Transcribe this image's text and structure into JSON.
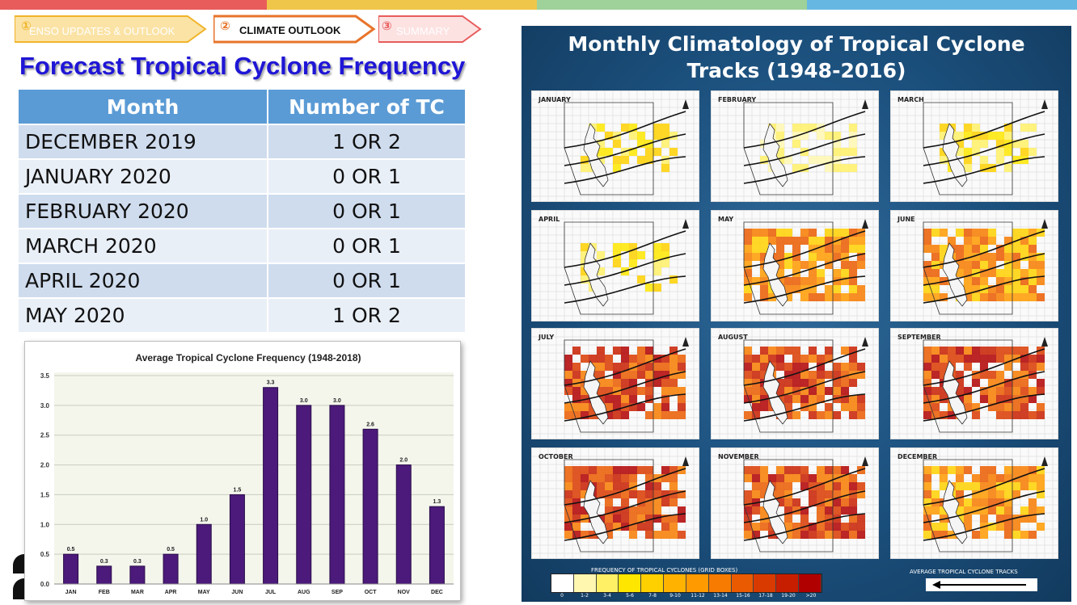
{
  "colors": {
    "strip": [
      "#e85c5c",
      "#f0c64a",
      "#9ed29a",
      "#66b8e3"
    ],
    "title_blue": "#1f16d6",
    "table_header": "#5b9bd5",
    "bar_purple": "#4b1a7a"
  },
  "breadcrumb": [
    {
      "num": "①",
      "label": "ENSO UPDATES & OUTLOOK"
    },
    {
      "num": "②",
      "label": "CLIMATE OUTLOOK"
    },
    {
      "num": "③",
      "label": "SUMMARY"
    }
  ],
  "page_title": "Forecast Tropical Cyclone Frequency",
  "table": {
    "headers": [
      "Month",
      "Number of TC"
    ],
    "rows": [
      {
        "month": "DECEMBER 2019",
        "value": "1 OR 2"
      },
      {
        "month": "JANUARY 2020",
        "value": "0 OR 1"
      },
      {
        "month": "FEBRUARY 2020",
        "value": "0 OR 1"
      },
      {
        "month": "MARCH 2020",
        "value": "0 OR 1"
      },
      {
        "month": "APRIL 2020",
        "value": "0 OR 1"
      },
      {
        "month": "MAY 2020",
        "value": "1 OR 2"
      }
    ]
  },
  "chart_data": {
    "type": "bar",
    "title": "Average Tropical Cyclone Frequency (1948-2018)",
    "categories": [
      "JAN",
      "FEB",
      "MAR",
      "APR",
      "MAY",
      "JUN",
      "JUL",
      "AUG",
      "SEP",
      "OCT",
      "NOV",
      "DEC"
    ],
    "values": [
      0.5,
      0.3,
      0.3,
      0.5,
      1.0,
      1.5,
      3.3,
      3.0,
      3.0,
      2.6,
      2.0,
      1.3
    ],
    "value_labels": [
      "0.5",
      "0.3",
      "0.3",
      "0.5",
      "1.0",
      "1.5",
      "3.3",
      "3.0",
      "3.0",
      "2.6",
      "2.0",
      "1.3"
    ],
    "ylim": [
      0,
      3.5
    ],
    "yticks": [
      "0.0",
      "0.5",
      "1.0",
      "1.5",
      "2.0",
      "2.5",
      "3.0",
      "3.5"
    ],
    "grid": true,
    "xlabel": "",
    "ylabel": ""
  },
  "climatology": {
    "title_line1": "Monthly Climatology of Tropical Cyclone",
    "title_line2": "Tracks (1948-2016)",
    "months": [
      {
        "name": "JANUARY",
        "intensity": 1
      },
      {
        "name": "FEBRUARY",
        "intensity": 0
      },
      {
        "name": "MARCH",
        "intensity": 1
      },
      {
        "name": "APRIL",
        "intensity": 1
      },
      {
        "name": "MAY",
        "intensity": 2
      },
      {
        "name": "JUNE",
        "intensity": 2
      },
      {
        "name": "JULY",
        "intensity": 3
      },
      {
        "name": "AUGUST",
        "intensity": 3
      },
      {
        "name": "SEPTEMBER",
        "intensity": 3
      },
      {
        "name": "OCTOBER",
        "intensity": 3
      },
      {
        "name": "NOVEMBER",
        "intensity": 3
      },
      {
        "name": "DECEMBER",
        "intensity": 2
      }
    ],
    "legend_title": "FREQUENCY OF TROPICAL CYCLONES (GRID BOXES)",
    "legend_ticks": [
      "0",
      "1-2",
      "3-4",
      "5-6",
      "7-8",
      "9-10",
      "11-12",
      "13-14",
      "15-16",
      "17-18",
      "19-20",
      ">20"
    ],
    "legend_colors": [
      "#ffffff",
      "#fff7b0",
      "#fff066",
      "#ffe600",
      "#ffd000",
      "#ffb300",
      "#ff9a00",
      "#f77b00",
      "#ea5a00",
      "#d93a00",
      "#c81e00",
      "#b00000"
    ],
    "avg_tracks_label": "AVERAGE TROPICAL CYCLONE TRACKS"
  }
}
